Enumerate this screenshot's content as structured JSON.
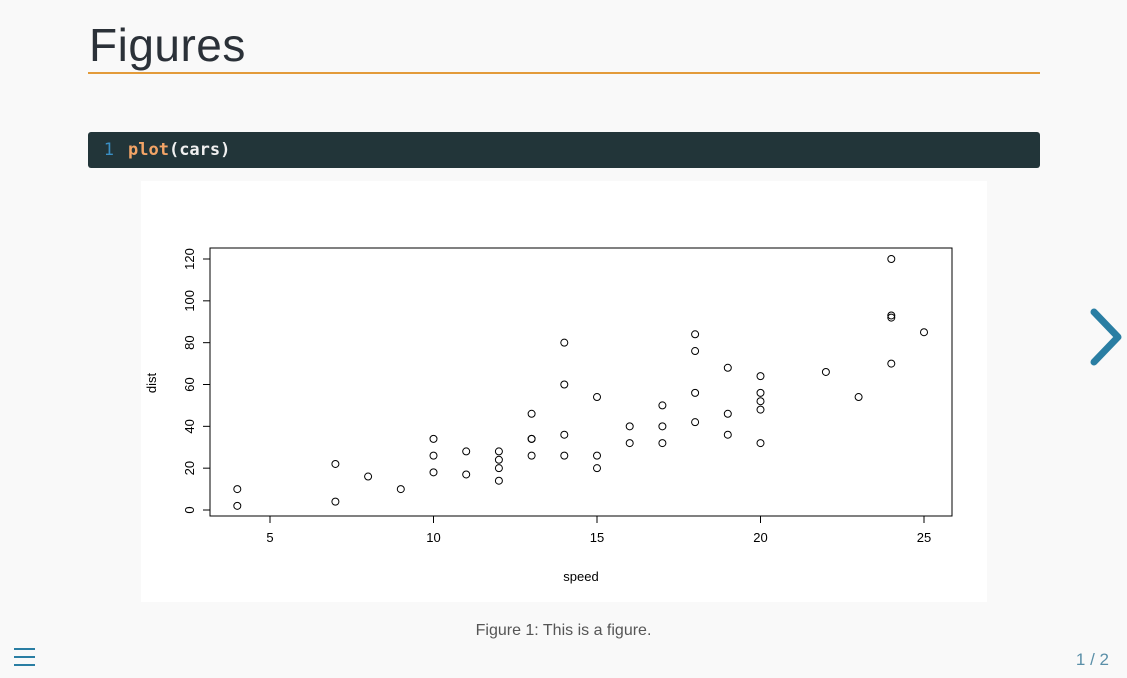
{
  "slide": {
    "title": "Figures",
    "page_indicator": "1 / 2"
  },
  "code": {
    "line_number": "1",
    "function": "plot",
    "rest": "(cars)"
  },
  "figure": {
    "caption": "Figure 1: This is a figure."
  },
  "icons": {
    "next": "chevron-right-icon",
    "menu": "hamburger-menu-icon"
  },
  "colors": {
    "accent_rule": "#e39b3a",
    "code_bg": "#223539",
    "nav": "#2a7ea3"
  },
  "chart_data": {
    "type": "scatter",
    "title": "",
    "xlabel": "speed",
    "ylabel": "dist",
    "xlim": [
      3,
      26
    ],
    "ylim": [
      -2,
      125
    ],
    "xticks": [
      5,
      10,
      15,
      20,
      25
    ],
    "yticks": [
      0,
      20,
      40,
      60,
      80,
      100,
      120
    ],
    "grid": false,
    "points": [
      [
        4,
        2
      ],
      [
        4,
        10
      ],
      [
        7,
        4
      ],
      [
        7,
        22
      ],
      [
        8,
        16
      ],
      [
        9,
        10
      ],
      [
        10,
        18
      ],
      [
        10,
        26
      ],
      [
        10,
        34
      ],
      [
        11,
        17
      ],
      [
        11,
        28
      ],
      [
        12,
        14
      ],
      [
        12,
        20
      ],
      [
        12,
        24
      ],
      [
        12,
        28
      ],
      [
        13,
        26
      ],
      [
        13,
        34
      ],
      [
        13,
        34
      ],
      [
        13,
        46
      ],
      [
        14,
        26
      ],
      [
        14,
        36
      ],
      [
        14,
        60
      ],
      [
        14,
        80
      ],
      [
        15,
        20
      ],
      [
        15,
        26
      ],
      [
        15,
        54
      ],
      [
        16,
        32
      ],
      [
        16,
        40
      ],
      [
        17,
        32
      ],
      [
        17,
        40
      ],
      [
        17,
        50
      ],
      [
        18,
        42
      ],
      [
        18,
        56
      ],
      [
        18,
        76
      ],
      [
        18,
        84
      ],
      [
        19,
        36
      ],
      [
        19,
        46
      ],
      [
        19,
        68
      ],
      [
        20,
        32
      ],
      [
        20,
        48
      ],
      [
        20,
        52
      ],
      [
        20,
        56
      ],
      [
        20,
        64
      ],
      [
        22,
        66
      ],
      [
        23,
        54
      ],
      [
        24,
        70
      ],
      [
        24,
        92
      ],
      [
        24,
        93
      ],
      [
        24,
        120
      ],
      [
        25,
        85
      ]
    ]
  }
}
